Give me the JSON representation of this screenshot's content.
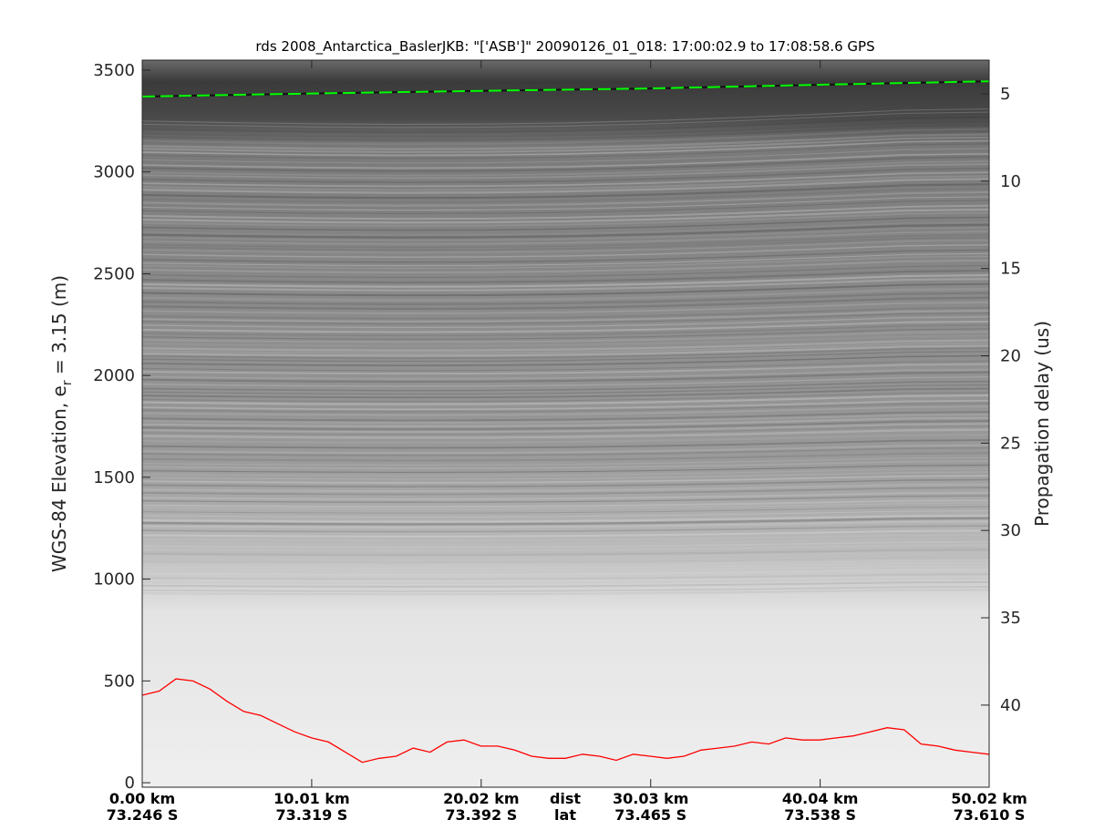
{
  "chart_data": {
    "type": "echogram",
    "title": "rds 2008_Antarctica_BaslerJKB: \"['ASB']\"  20090126_01_018: 17:00:02.9 to 17:08:58.6 GPS",
    "ylabel_left": "WGS-84 Elevation, e",
    "ylabel_left_sub": "r",
    "ylabel_left_tail": " = 3.15 (m)",
    "ylabel_right": "Propagation delay (us)",
    "ylim_left": [
      -22,
      3549
    ],
    "yticks_left": [
      0,
      500,
      1000,
      1500,
      2000,
      2500,
      3000,
      3500
    ],
    "ylim_right": [
      3.07,
      44.7
    ],
    "yticks_right": [
      5,
      10,
      15,
      20,
      25,
      30,
      35,
      40
    ],
    "xlim_km": [
      0,
      50.02
    ],
    "xticks": [
      {
        "dist": "0.00 km",
        "lat": "73.246 S",
        "km": 0
      },
      {
        "dist": "10.01 km",
        "lat": "73.319 S",
        "km": 10.01
      },
      {
        "dist": "20.02 km",
        "lat": "73.392 S",
        "km": 20.02
      },
      {
        "dist": "30.03 km",
        "lat": "73.465 S",
        "km": 30.03
      },
      {
        "dist": "40.04 km",
        "lat": "73.538 S",
        "km": 40.04
      },
      {
        "dist": "50.02 km",
        "lat": "73.610 S",
        "km": 50.02
      }
    ],
    "xaxis_row_labels": {
      "dist": "dist",
      "lat": "lat"
    },
    "colormap": "gray",
    "series": [
      {
        "layer": "surface",
        "color": "#00ff00",
        "style": "dashed",
        "x_km": [
          0,
          10,
          20,
          30,
          40,
          50
        ],
        "elevation_m": [
          3370,
          3385,
          3398,
          3410,
          3428,
          3445
        ]
      },
      {
        "layer": "bottom",
        "color": "#ff0000",
        "style": "solid",
        "x_km": [
          0,
          1,
          2,
          3,
          4,
          5,
          6,
          7,
          8,
          9,
          10,
          11,
          12,
          13,
          14,
          15,
          16,
          17,
          18,
          19,
          20,
          21,
          22,
          23,
          24,
          25,
          26,
          27,
          28,
          29,
          30,
          31,
          32,
          33,
          34,
          35,
          36,
          37,
          38,
          39,
          40,
          41,
          42,
          43,
          44,
          45,
          46,
          47,
          48,
          49,
          50
        ],
        "elevation_m": [
          430,
          450,
          510,
          500,
          460,
          400,
          350,
          330,
          290,
          250,
          220,
          200,
          150,
          100,
          120,
          130,
          170,
          150,
          200,
          210,
          180,
          180,
          160,
          130,
          120,
          120,
          140,
          130,
          110,
          140,
          130,
          120,
          130,
          160,
          170,
          180,
          200,
          190,
          220,
          210,
          210,
          220,
          230,
          250,
          270,
          260,
          190,
          180,
          160,
          150,
          140
        ]
      }
    ]
  }
}
